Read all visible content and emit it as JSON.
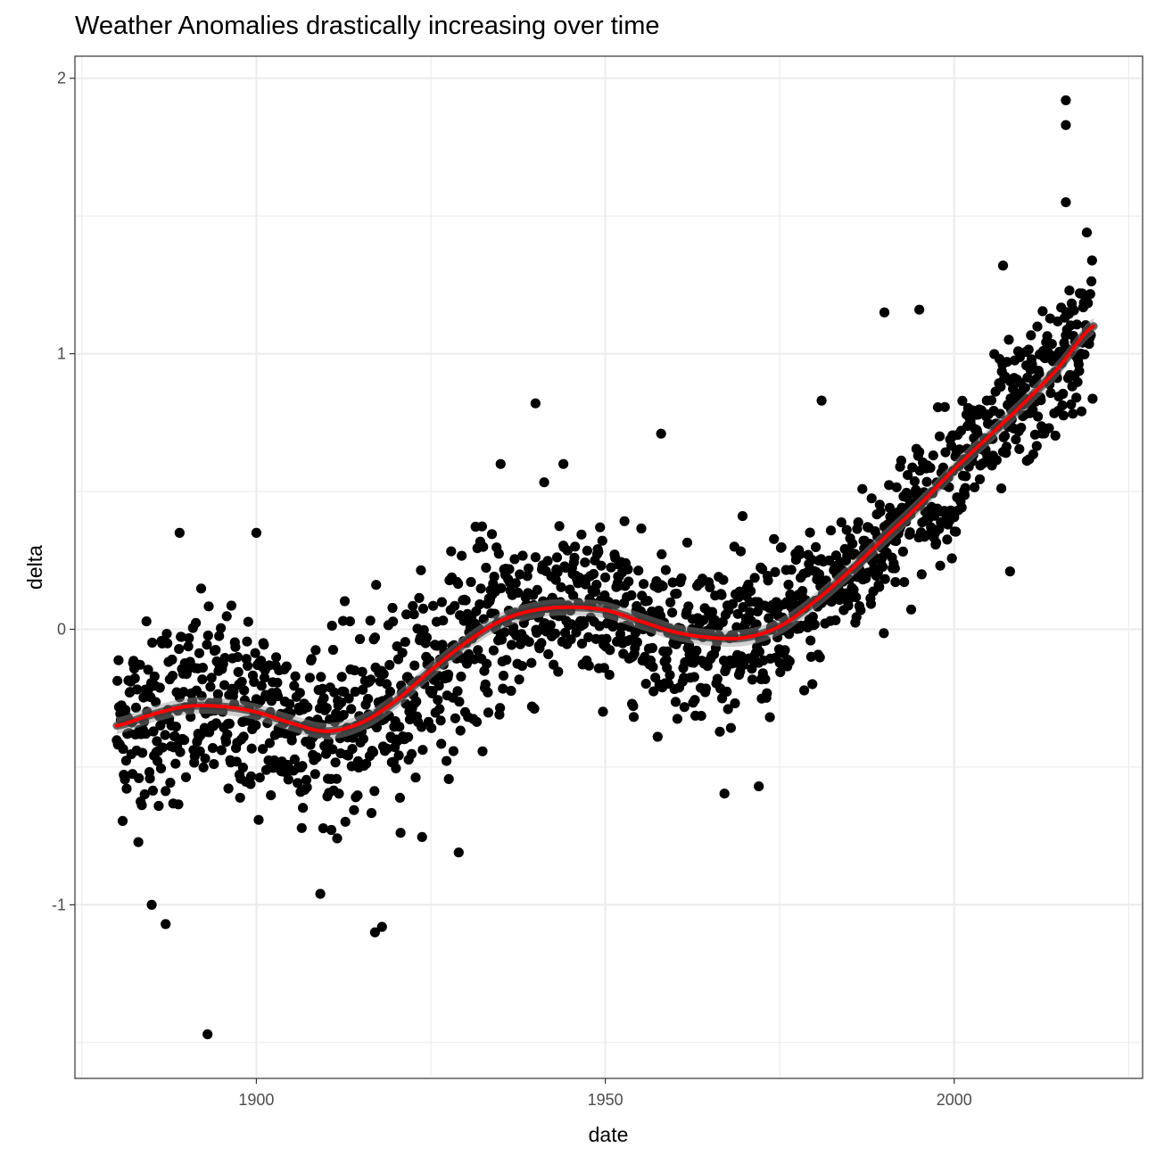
{
  "chart_data": {
    "type": "scatter",
    "title": "Weather Anomalies drastically increasing over time",
    "xlabel": "date",
    "ylabel": "delta",
    "xlim": [
      1874,
      2027
    ],
    "ylim": [
      -1.63,
      2.08
    ],
    "x_ticks": [
      1900,
      1950,
      2000
    ],
    "x_tick_labels": [
      "1900",
      "1950",
      "2000"
    ],
    "y_ticks": [
      -1,
      0,
      1,
      2
    ],
    "y_tick_labels": [
      "-1",
      "0",
      "1",
      "2"
    ],
    "grid": true,
    "legend": "none",
    "point_series": {
      "x_start": 1880,
      "x_end": 2019.9,
      "note_points_monthly": true
    },
    "trend": {
      "x": [
        1880,
        1885,
        1890,
        1895,
        1900,
        1905,
        1910,
        1915,
        1920,
        1925,
        1930,
        1935,
        1940,
        1945,
        1950,
        1955,
        1960,
        1965,
        1970,
        1975,
        1980,
        1985,
        1990,
        1995,
        2000,
        2005,
        2010,
        2015,
        2020
      ],
      "y": [
        -0.35,
        -0.31,
        -0.28,
        -0.28,
        -0.3,
        -0.34,
        -0.37,
        -0.34,
        -0.26,
        -0.15,
        -0.05,
        0.03,
        0.07,
        0.08,
        0.07,
        0.03,
        -0.01,
        -0.03,
        -0.03,
        0.01,
        0.1,
        0.21,
        0.33,
        0.45,
        0.58,
        0.7,
        0.82,
        0.95,
        1.1
      ]
    },
    "colors": {
      "points": "#000000",
      "trend": "#ff0000",
      "band": "#999999",
      "grid": "#ebebeb"
    },
    "outliers": [
      {
        "x": 1893,
        "y": -1.47
      },
      {
        "x": 1885,
        "y": -1.0
      },
      {
        "x": 1887,
        "y": -1.07
      },
      {
        "x": 1917,
        "y": -1.1
      },
      {
        "x": 1918,
        "y": -1.08
      },
      {
        "x": 2016,
        "y": 1.92
      },
      {
        "x": 2016,
        "y": 1.83
      },
      {
        "x": 2016,
        "y": 1.55
      },
      {
        "x": 1940,
        "y": 0.82
      },
      {
        "x": 1958,
        "y": 0.71
      },
      {
        "x": 1990,
        "y": 1.15
      },
      {
        "x": 1995,
        "y": 1.16
      },
      {
        "x": 2007,
        "y": 1.32
      },
      {
        "x": 1929,
        "y": -0.81
      },
      {
        "x": 1900,
        "y": 0.35
      },
      {
        "x": 1889,
        "y": 0.35
      },
      {
        "x": 1935,
        "y": 0.6
      },
      {
        "x": 1944,
        "y": 0.6
      },
      {
        "x": 2008,
        "y": 0.21
      },
      {
        "x": 1972,
        "y": -0.57
      },
      {
        "x": 1981,
        "y": 0.83
      },
      {
        "x": 2019,
        "y": 1.44
      }
    ]
  }
}
